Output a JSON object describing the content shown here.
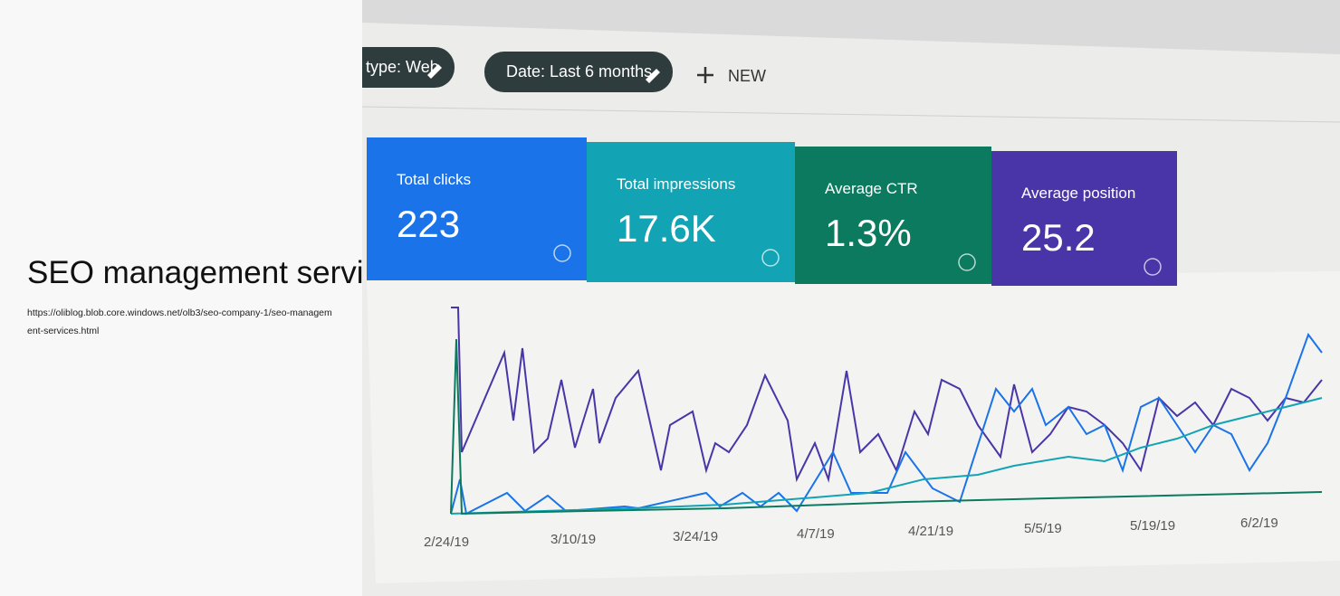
{
  "page": {
    "title": "SEO management services",
    "url": "https://oliblog.blob.core.windows.net/olb3/seo-company-1/seo-management-services.html"
  },
  "image": {
    "chips": [
      "type: Web",
      "Date: Last 6 months",
      "NEW"
    ],
    "cards": [
      {
        "label": "Total clicks",
        "value": "223"
      },
      {
        "label": "Total impressions",
        "value": "17.6K"
      },
      {
        "label": "Average CTR",
        "value": "1.3%"
      },
      {
        "label": "Average position",
        "value": "25.2"
      }
    ],
    "x_labels": [
      "2/24/19",
      "3/10/19",
      "3/24/19",
      "4/7/19",
      "4/21/19",
      "5/5/19",
      "5/19/19",
      "6/2/19"
    ]
  }
}
